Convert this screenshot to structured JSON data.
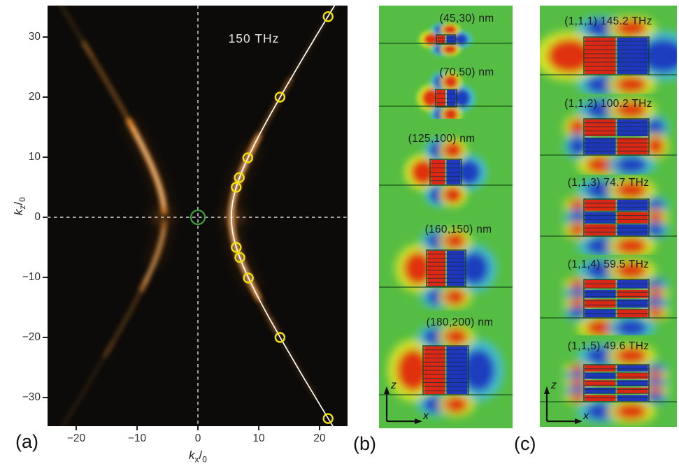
{
  "figure": {
    "panel_labels": {
      "a": "(a)",
      "b": "(b)",
      "c": "(c)"
    }
  },
  "panel_a": {
    "title": "150 THz",
    "xlabel": {
      "k": "k",
      "sub1": "x",
      "slash": "/",
      "k2": "k",
      "sub2": "0"
    },
    "ylabel": {
      "k": "k",
      "sub1": "z",
      "slash": "/",
      "k2": "k",
      "sub2": "0"
    },
    "x_ticks": [
      {
        "v": -20,
        "label": "−20"
      },
      {
        "v": -10,
        "label": "−10"
      },
      {
        "v": 0,
        "label": "0"
      },
      {
        "v": 10,
        "label": "10"
      },
      {
        "v": 20,
        "label": "20"
      }
    ],
    "y_ticks": [
      {
        "v": 30,
        "label": "30"
      },
      {
        "v": 20,
        "label": "20"
      },
      {
        "v": 10,
        "label": "10"
      },
      {
        "v": 0,
        "label": "0"
      },
      {
        "v": -10,
        "label": "−10"
      },
      {
        "v": -20,
        "label": "−20"
      },
      {
        "v": -30,
        "label": "−30"
      }
    ],
    "colors": {
      "bg": "#0d0b09",
      "glow": "#ff9a35",
      "glow_hot": "#ffd9a0",
      "glow_soft": "#c06018",
      "fit_line": "#ffffff",
      "circle": "#f2e10c",
      "origin_circle": "#3da23d",
      "dashed": "#e0e0e0"
    }
  },
  "panel_b": {
    "cells": [
      {
        "label": "(45,30) nm"
      },
      {
        "label": "(70,50) nm"
      },
      {
        "label": "(125,100) nm"
      },
      {
        "label": "(160,150) nm"
      },
      {
        "label": "(180,200) nm"
      }
    ],
    "axes": {
      "vertical": "z",
      "horizontal": "x"
    }
  },
  "panel_c": {
    "cells": [
      {
        "label": "(1,1,1) 145.2 THz"
      },
      {
        "label": "(1,1,2) 100.2 THz"
      },
      {
        "label": "(1,1,3) 74.7 THz"
      },
      {
        "label": "(1,1,4) 59.5 THz"
      },
      {
        "label": "(1,1,5) 49.6 THz"
      }
    ],
    "axes": {
      "vertical": "z",
      "horizontal": "x"
    }
  },
  "chart_data": [
    {
      "panel": "a",
      "type": "scatter",
      "title": "150 THz",
      "xlabel": "kx/k0",
      "ylabel": "kz/k0",
      "xlim": [
        -24.7,
        24.6
      ],
      "ylim": [
        -34.9,
        35.2
      ],
      "x_ticks": [
        -20,
        -10,
        0,
        10,
        20
      ],
      "y_ticks": [
        30,
        20,
        10,
        0,
        -10,
        -20,
        -30
      ],
      "grid": false,
      "series": [
        {
          "name": "extracted-mode-wavevectors-yellow-circles",
          "points": [
            [
              21.4,
              33.4
            ],
            [
              13.5,
              20.0
            ],
            [
              8.2,
              9.9
            ],
            [
              6.8,
              6.6
            ],
            [
              6.3,
              5.0
            ],
            [
              6.3,
              -5.0
            ],
            [
              6.9,
              -6.7
            ],
            [
              8.3,
              -10.1
            ],
            [
              13.5,
              -20.0
            ],
            [
              21.4,
              -33.5
            ]
          ]
        },
        {
          "name": "hyperbolic-isofrequency-fit-white-line",
          "hyperbola": {
            "kx_vertex": 5.5,
            "asymptote_param_b": 8.9
          }
        },
        {
          "name": "origin-marker-green-circle",
          "points": [
            [
              0,
              0
            ]
          ]
        }
      ],
      "background_feature": "orange hyperbola intensity branches opening left and right"
    },
    {
      "panel": "b",
      "type": "heatmap",
      "description_axes": [
        "z",
        "x"
      ],
      "cells": [
        {
          "label": "(45,30) nm",
          "size_nm": [
            45,
            30
          ],
          "mode_order": 1
        },
        {
          "label": "(70,50) nm",
          "size_nm": [
            70,
            50
          ],
          "mode_order": 1
        },
        {
          "label": "(125,100) nm",
          "size_nm": [
            125,
            100
          ],
          "mode_order": 1
        },
        {
          "label": "(160,150) nm",
          "size_nm": [
            160,
            150
          ],
          "mode_order": 1
        },
        {
          "label": "(180,200) nm",
          "size_nm": [
            180,
            200
          ],
          "mode_order": 1
        }
      ]
    },
    {
      "panel": "c",
      "type": "heatmap",
      "description_axes": [
        "z",
        "x"
      ],
      "cells": [
        {
          "label": "(1,1,1) 145.2 THz",
          "mode": [
            1,
            1,
            1
          ],
          "freq_THz": 145.2
        },
        {
          "label": "(1,1,2) 100.2 THz",
          "mode": [
            1,
            1,
            2
          ],
          "freq_THz": 100.2
        },
        {
          "label": "(1,1,3) 74.7 THz",
          "mode": [
            1,
            1,
            3
          ],
          "freq_THz": 74.7
        },
        {
          "label": "(1,1,4) 59.5 THz",
          "mode": [
            1,
            1,
            4
          ],
          "freq_THz": 59.5
        },
        {
          "label": "(1,1,5) 49.6 THz",
          "mode": [
            1,
            1,
            5
          ],
          "freq_THz": 49.6
        }
      ]
    }
  ]
}
